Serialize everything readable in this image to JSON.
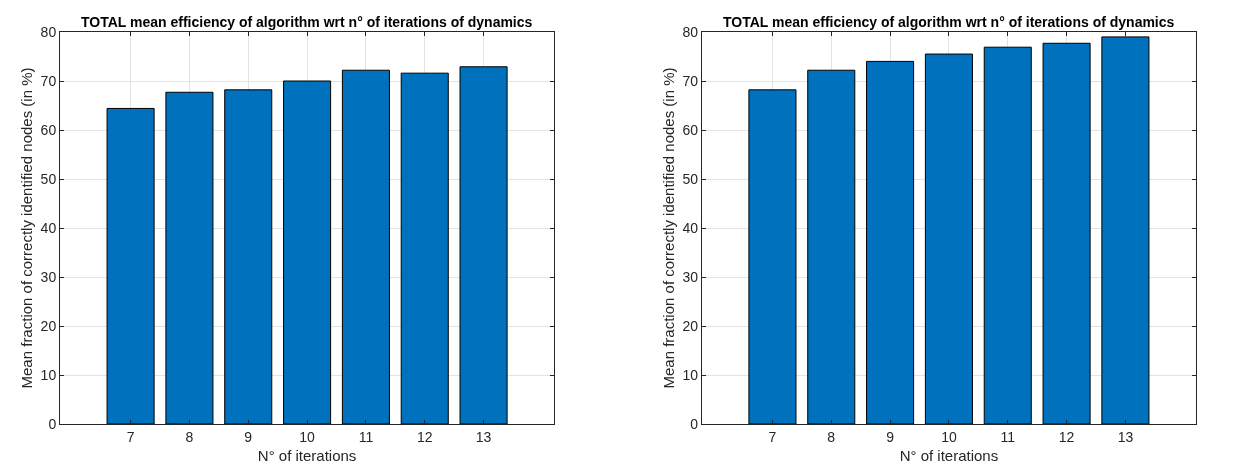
{
  "chart_data": [
    {
      "type": "bar",
      "title": "TOTAL mean efficiency of algorithm wrt n° of iterations of dynamics",
      "xlabel": "N° of iterations",
      "ylabel": "Mean fraction of correctly identified nodes (in %)",
      "x": [
        7,
        8,
        9,
        10,
        11,
        12,
        13
      ],
      "values": [
        64.4,
        67.7,
        68.2,
        70.0,
        72.2,
        71.6,
        72.9
      ],
      "color": "#0072bd",
      "xlim": [
        5.8,
        14.2
      ],
      "xticks": [
        7,
        8,
        9,
        10,
        11,
        12,
        13
      ],
      "ylim": [
        0,
        80
      ],
      "yticks": [
        0,
        10,
        20,
        30,
        40,
        50,
        60,
        70,
        80
      ],
      "grid": true
    },
    {
      "type": "bar",
      "title": "TOTAL mean efficiency of algorithm wrt n° of iterations of dynamics",
      "xlabel": "N° of iterations",
      "ylabel": "Mean fraction of correctly identified nodes (in %)",
      "x": [
        7,
        8,
        9,
        10,
        11,
        12,
        13
      ],
      "values": [
        68.2,
        72.2,
        74.0,
        75.5,
        76.9,
        77.7,
        79.0
      ],
      "color": "#0072bd",
      "xlim": [
        5.8,
        14.2
      ],
      "xticks": [
        7,
        8,
        9,
        10,
        11,
        12,
        13
      ],
      "ylim": [
        0,
        80
      ],
      "yticks": [
        0,
        10,
        20,
        30,
        40,
        50,
        60,
        70,
        80
      ],
      "grid": true
    }
  ]
}
